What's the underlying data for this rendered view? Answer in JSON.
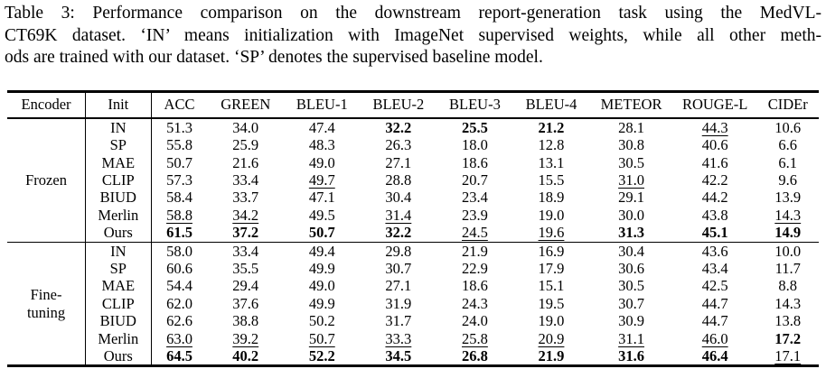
{
  "caption": {
    "lines": [
      "Table 3: Performance comparison on the downstream report-generation task using the MedVL-",
      "CT69K dataset. ‘IN’ means initialization with ImageNet supervised weights, while all other meth-",
      "ods are trained with our dataset. ‘SP’ denotes the supervised baseline model."
    ]
  },
  "table": {
    "columns": [
      "Encoder",
      "Init",
      "ACC",
      "GREEN",
      "BLEU-1",
      "BLEU-2",
      "BLEU-3",
      "BLEU-4",
      "METEOR",
      "ROUGE-L",
      "CIDEr"
    ],
    "groups": [
      {
        "encoder": "Frozen",
        "rows": [
          {
            "init": "IN",
            "values": [
              "51.3",
              "34.0",
              "47.4",
              "32.2",
              "25.5",
              "21.2",
              "28.1",
              "44.3",
              "10.6"
            ],
            "styles": [
              "",
              "",
              "",
              "b",
              "b",
              "b",
              "",
              "u",
              ""
            ]
          },
          {
            "init": "SP",
            "values": [
              "55.8",
              "25.9",
              "48.3",
              "26.3",
              "18.0",
              "12.8",
              "30.8",
              "40.6",
              "6.6"
            ],
            "styles": [
              "",
              "",
              "",
              "",
              "",
              "",
              "",
              "",
              ""
            ]
          },
          {
            "init": "MAE",
            "values": [
              "50.7",
              "21.6",
              "49.0",
              "27.1",
              "18.6",
              "13.1",
              "30.5",
              "41.6",
              "6.1"
            ],
            "styles": [
              "",
              "",
              "",
              "",
              "",
              "",
              "",
              "",
              ""
            ]
          },
          {
            "init": "CLIP",
            "values": [
              "57.3",
              "33.4",
              "49.7",
              "28.8",
              "20.7",
              "15.5",
              "31.0",
              "42.2",
              "9.6"
            ],
            "styles": [
              "",
              "",
              "u",
              "",
              "",
              "",
              "u",
              "",
              ""
            ]
          },
          {
            "init": "BIUD",
            "values": [
              "58.4",
              "33.7",
              "47.1",
              "30.4",
              "23.4",
              "18.9",
              "29.1",
              "44.2",
              "13.9"
            ],
            "styles": [
              "",
              "",
              "",
              "",
              "",
              "",
              "",
              "",
              ""
            ]
          },
          {
            "init": "Merlin",
            "values": [
              "58.8",
              "34.2",
              "49.5",
              "31.4",
              "23.9",
              "19.0",
              "30.0",
              "43.8",
              "14.3"
            ],
            "styles": [
              "u",
              "u",
              "",
              "u",
              "",
              "",
              "",
              "",
              "u"
            ]
          },
          {
            "init": "Ours",
            "values": [
              "61.5",
              "37.2",
              "50.7",
              "32.2",
              "24.5",
              "19.6",
              "31.3",
              "45.1",
              "14.9"
            ],
            "styles": [
              "b",
              "b",
              "b",
              "b",
              "u",
              "u",
              "b",
              "b",
              "b"
            ]
          }
        ]
      },
      {
        "encoder": "Fine-\ntuning",
        "rows": [
          {
            "init": "IN",
            "values": [
              "58.0",
              "33.4",
              "49.4",
              "29.8",
              "21.9",
              "16.9",
              "30.4",
              "43.6",
              "10.0"
            ],
            "styles": [
              "",
              "",
              "",
              "",
              "",
              "",
              "",
              "",
              ""
            ]
          },
          {
            "init": "SP",
            "values": [
              "60.6",
              "35.5",
              "49.9",
              "30.7",
              "22.9",
              "17.9",
              "30.6",
              "43.4",
              "11.7"
            ],
            "styles": [
              "",
              "",
              "",
              "",
              "",
              "",
              "",
              "",
              ""
            ]
          },
          {
            "init": "MAE",
            "values": [
              "54.4",
              "29.4",
              "49.0",
              "27.1",
              "18.6",
              "15.1",
              "30.5",
              "42.5",
              "8.8"
            ],
            "styles": [
              "",
              "",
              "",
              "",
              "",
              "",
              "",
              "",
              ""
            ]
          },
          {
            "init": "CLIP",
            "values": [
              "62.0",
              "37.6",
              "49.9",
              "31.9",
              "24.3",
              "19.5",
              "30.7",
              "44.7",
              "14.3"
            ],
            "styles": [
              "",
              "",
              "",
              "",
              "",
              "",
              "",
              "",
              ""
            ]
          },
          {
            "init": "BIUD",
            "values": [
              "62.6",
              "38.8",
              "50.2",
              "31.7",
              "24.0",
              "19.0",
              "30.9",
              "44.7",
              "13.8"
            ],
            "styles": [
              "",
              "",
              "",
              "",
              "",
              "",
              "",
              "",
              ""
            ]
          },
          {
            "init": "Merlin",
            "values": [
              "63.0",
              "39.2",
              "50.7",
              "33.3",
              "25.8",
              "20.9",
              "31.1",
              "46.0",
              "17.2"
            ],
            "styles": [
              "u",
              "u",
              "u",
              "u",
              "u",
              "u",
              "u",
              "u",
              "b"
            ]
          },
          {
            "init": "Ours",
            "values": [
              "64.5",
              "40.2",
              "52.2",
              "34.5",
              "26.8",
              "21.9",
              "31.6",
              "46.4",
              "17.1"
            ],
            "styles": [
              "b",
              "b",
              "b",
              "b",
              "b",
              "b",
              "b",
              "b",
              "u"
            ]
          }
        ]
      }
    ]
  }
}
